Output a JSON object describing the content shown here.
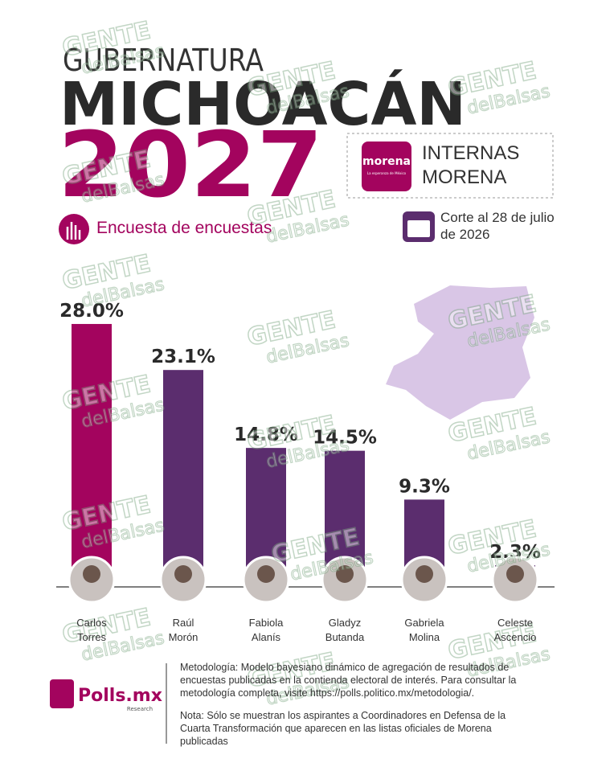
{
  "header": {
    "kicker": "GUBERNATURA",
    "state": "MICHOACÁN",
    "year": "2027",
    "badge": {
      "logo": "morena",
      "logo_tagline": "La esperanza de México",
      "text": "INTERNAS MORENA"
    },
    "subtitle": "Encuesta de encuestas",
    "cutoff": "Corte al 28 de julio de 2026"
  },
  "chart_data": {
    "type": "bar",
    "categories": [
      "Carlos Torres",
      "Raúl Morón",
      "Fabiola Alanís",
      "Gladyz Butanda",
      "Gabriela Molina",
      "Celeste Ascencio"
    ],
    "values": [
      28.0,
      23.1,
      14.8,
      14.5,
      9.3,
      2.3
    ],
    "value_labels": [
      "28.0%",
      "23.1%",
      "14.8%",
      "14.5%",
      "9.3%",
      "2.3%"
    ],
    "colors": [
      "#a3045e",
      "#5b2d6e",
      "#5b2d6e",
      "#5b2d6e",
      "#5b2d6e",
      "#5b2d6e"
    ]
  },
  "footer": {
    "brand": "Polls.mx",
    "brand_sub": "Research",
    "methodology": "Metodología: Modelo bayesiano dinámico de agregación de resultados de encuestas publicadas en la contienda electoral de interés. Para consultar la metodología completa, visite https://polls.politico.mx/metodologia/.",
    "note": "Nota: Sólo se muestran los aspirantes a Coordinadores en Defensa de la Cuarta Transformación que aparecen en las listas oficiales de Morena publicadas"
  },
  "watermark": {
    "line1": "GENTE",
    "line2": "delBalsas"
  }
}
